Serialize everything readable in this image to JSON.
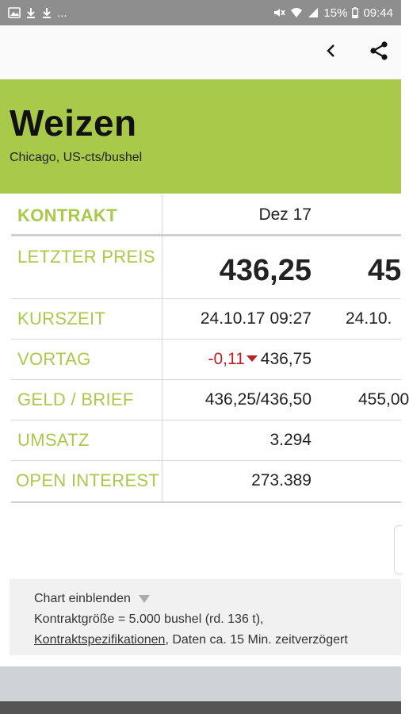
{
  "status_bar": {
    "left_icons": [
      "image-icon",
      "download-icon",
      "download-icon"
    ],
    "left_more": "...",
    "battery": "15%",
    "time": "09:44"
  },
  "header": {
    "title": "Weizen",
    "subtitle": "Chicago, US-cts/bushel"
  },
  "table": {
    "rows": [
      {
        "label": "KONTRAKT",
        "c1": "Dez 17",
        "c2": ""
      },
      {
        "label": "LETZTER PREIS",
        "c1": "436,25",
        "c2": "45"
      },
      {
        "label": "KURSZEIT",
        "c1": "24.10.17 09:27",
        "c2": "24.10."
      },
      {
        "label": "VORTAG",
        "c1_change": "-0,11",
        "c1_value": "436,75",
        "c2": ""
      },
      {
        "label": "GELD / BRIEF",
        "c1": "436,25/436,50",
        "c2": "455,00"
      },
      {
        "label": "UMSATZ",
        "c1": "3.294",
        "c2": ""
      },
      {
        "label": "OPEN INTEREST",
        "c1": "273.389",
        "c2": ""
      }
    ]
  },
  "info": {
    "chart_toggle": "Chart einblenden",
    "contract_size": "Kontraktgröße = 5.000 bushel (rd. 136 t),",
    "spec_link": "Kontraktspezifikationen",
    "delay_note": ", Daten ca. 15 Min. zeitverzögert"
  },
  "colors": {
    "accent": "#a9c94b",
    "negative": "#b8222a",
    "status_bar": "#8e8e8e"
  }
}
